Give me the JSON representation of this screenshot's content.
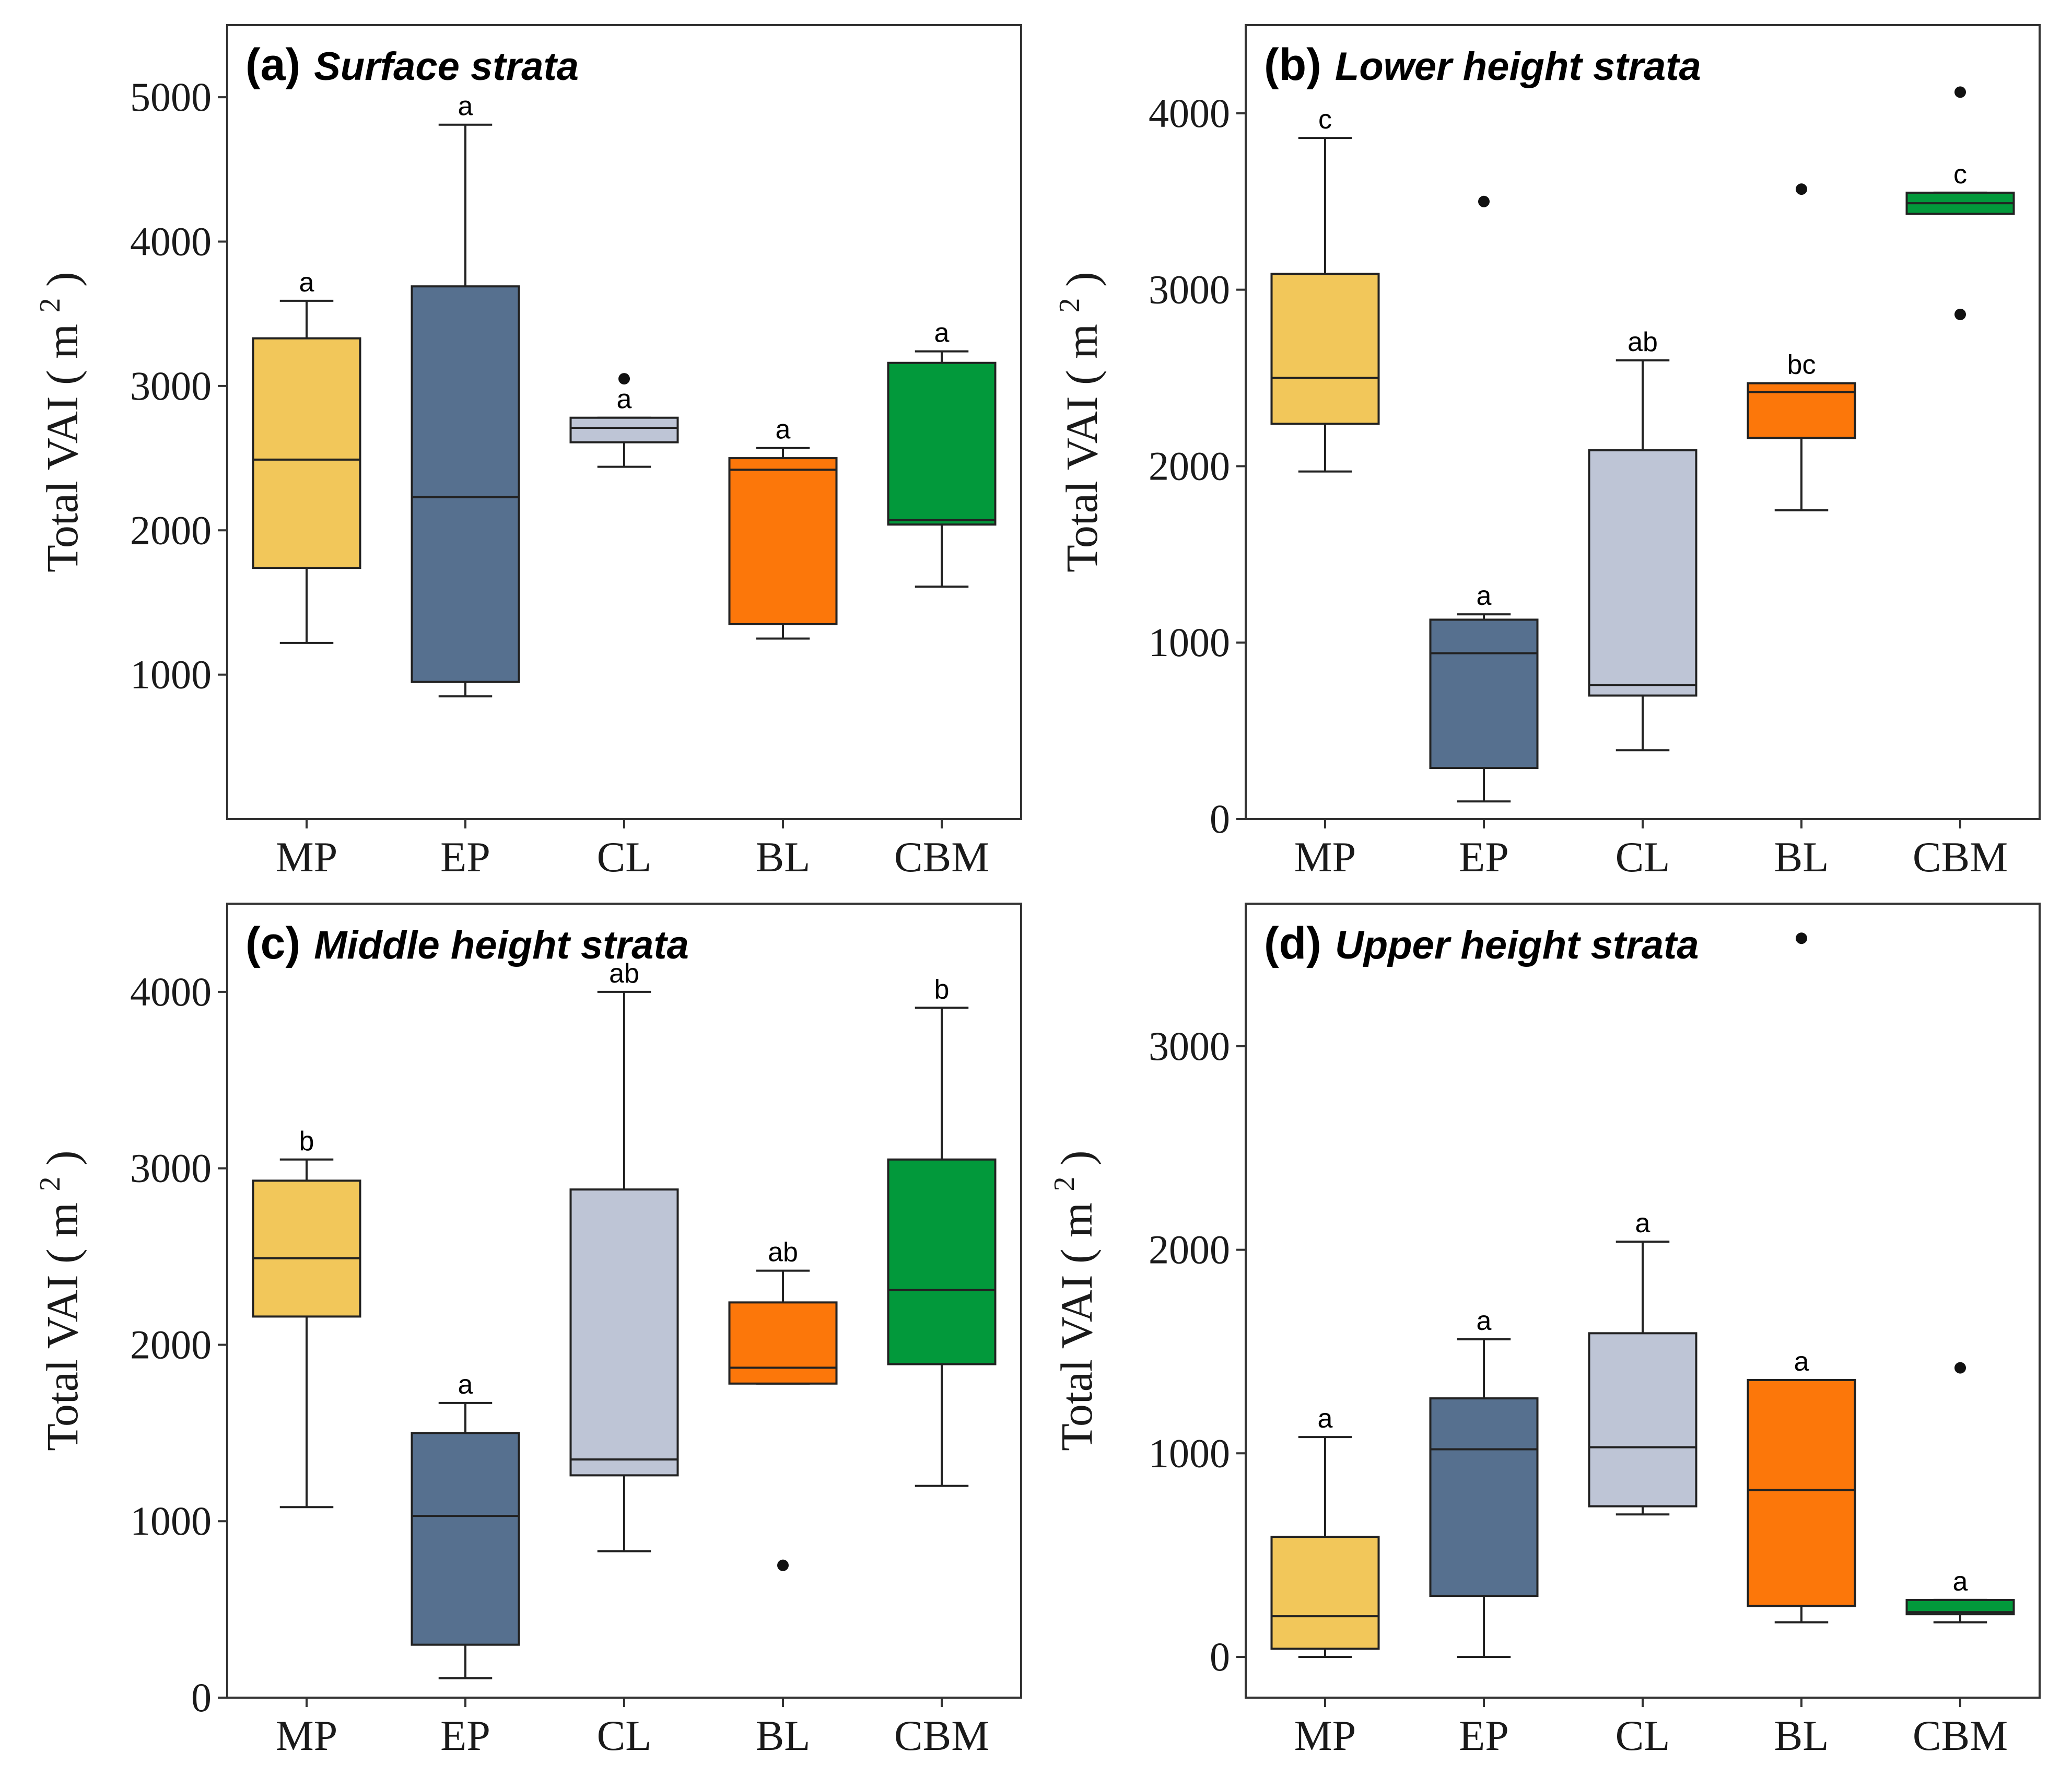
{
  "chart_data": [
    {
      "type": "box",
      "panel": "(a)",
      "title": "Surface strata",
      "ylabel": "Total VAI ( m",
      "ylabel_sup": "2",
      "ylabel_close": ")",
      "ylim": [
        0,
        5500
      ],
      "yticks": [
        1000,
        2000,
        3000,
        4000,
        5000
      ],
      "ytick_labels": [
        "1000",
        "2000",
        "3000",
        "4000",
        "5000"
      ],
      "categories": [
        "MP",
        "EP",
        "CL",
        "BL",
        "CBM"
      ],
      "boxes": [
        {
          "min": 1220,
          "q1": 1740,
          "median": 2490,
          "q3": 3330,
          "max": 3590,
          "outliers": [],
          "sig": "a"
        },
        {
          "min": 850,
          "q1": 950,
          "median": 2230,
          "q3": 3690,
          "max": 4810,
          "outliers": [],
          "sig": "a"
        },
        {
          "min": 2440,
          "q1": 2610,
          "median": 2710,
          "q3": 2780,
          "max": 2780,
          "outliers": [
            3050
          ],
          "sig": "a"
        },
        {
          "min": 1250,
          "q1": 1350,
          "median": 2420,
          "q3": 2500,
          "max": 2570,
          "outliers": [],
          "sig": "a"
        },
        {
          "min": 1610,
          "q1": 2040,
          "median": 2070,
          "q3": 3160,
          "max": 3240,
          "outliers": [],
          "sig": "a"
        }
      ]
    },
    {
      "type": "box",
      "panel": "(b)",
      "title": "Lower height strata",
      "ylabel": "Total VAI ( m",
      "ylabel_sup": "2",
      "ylabel_close": ")",
      "ylim": [
        0,
        4500
      ],
      "yticks": [
        0,
        1000,
        2000,
        3000,
        4000
      ],
      "ytick_labels": [
        "0",
        "1000",
        "2000",
        "3000",
        "4000"
      ],
      "categories": [
        "MP",
        "EP",
        "CL",
        "BL",
        "CBM"
      ],
      "boxes": [
        {
          "min": 1970,
          "q1": 2240,
          "median": 2500,
          "q3": 3090,
          "max": 3860,
          "outliers": [],
          "sig": "c"
        },
        {
          "min": 100,
          "q1": 290,
          "median": 940,
          "q3": 1130,
          "max": 1160,
          "outliers": [
            3500
          ],
          "sig": "a"
        },
        {
          "min": 390,
          "q1": 700,
          "median": 760,
          "q3": 2090,
          "max": 2600,
          "outliers": [],
          "sig": "ab"
        },
        {
          "min": 1750,
          "q1": 2160,
          "median": 2420,
          "q3": 2470,
          "max": 2470,
          "outliers": [
            3570
          ],
          "sig": "bc"
        },
        {
          "min": 3430,
          "q1": 3430,
          "median": 3490,
          "q3": 3550,
          "max": 3550,
          "outliers": [
            4120,
            2860
          ],
          "sig": "c"
        }
      ]
    },
    {
      "type": "box",
      "panel": "(c)",
      "title": "Middle height strata",
      "ylabel": "Total VAI ( m",
      "ylabel_sup": "2",
      "ylabel_close": ")",
      "ylim": [
        0,
        4500
      ],
      "yticks": [
        0,
        1000,
        2000,
        3000,
        4000
      ],
      "ytick_labels": [
        "0",
        "1000",
        "2000",
        "3000",
        "4000"
      ],
      "categories": [
        "MP",
        "EP",
        "CL",
        "BL",
        "CBM"
      ],
      "boxes": [
        {
          "min": 1080,
          "q1": 2160,
          "median": 2490,
          "q3": 2930,
          "max": 3050,
          "outliers": [],
          "sig": "b"
        },
        {
          "min": 110,
          "q1": 300,
          "median": 1030,
          "q3": 1500,
          "max": 1670,
          "outliers": [],
          "sig": "a"
        },
        {
          "min": 830,
          "q1": 1260,
          "median": 1350,
          "q3": 2880,
          "max": 4000,
          "outliers": [],
          "sig": "ab"
        },
        {
          "min": 1780,
          "q1": 1780,
          "median": 1870,
          "q3": 2240,
          "max": 2420,
          "outliers": [
            750
          ],
          "sig": "ab"
        },
        {
          "min": 1200,
          "q1": 1890,
          "median": 2310,
          "q3": 3050,
          "max": 3910,
          "outliers": [],
          "sig": "b"
        }
      ]
    },
    {
      "type": "box",
      "panel": "(d)",
      "title": "Upper height strata",
      "ylabel": "Total VAI ( m",
      "ylabel_sup": "2",
      "ylabel_close": ")",
      "ylim": [
        -200,
        3700
      ],
      "yticks": [
        0,
        1000,
        2000,
        3000
      ],
      "ytick_labels": [
        "0",
        "1000",
        "2000",
        "3000"
      ],
      "categories": [
        "MP",
        "EP",
        "CL",
        "BL",
        "CBM"
      ],
      "boxes": [
        {
          "min": 0,
          "q1": 40,
          "median": 200,
          "q3": 590,
          "max": 1080,
          "outliers": [],
          "sig": "a"
        },
        {
          "min": 0,
          "q1": 300,
          "median": 1020,
          "q3": 1270,
          "max": 1560,
          "outliers": [],
          "sig": "a"
        },
        {
          "min": 700,
          "q1": 740,
          "median": 1030,
          "q3": 1590,
          "max": 2040,
          "outliers": [],
          "sig": "a"
        },
        {
          "min": 170,
          "q1": 250,
          "median": 820,
          "q3": 1360,
          "max": 1360,
          "outliers": [
            3530
          ],
          "sig": "a"
        },
        {
          "min": 170,
          "q1": 210,
          "median": 220,
          "q3": 280,
          "max": 280,
          "outliers": [
            1420
          ],
          "sig": "a"
        }
      ]
    }
  ],
  "colors": [
    "#f2c75a",
    "#56708f",
    "#bec5d6",
    "#fc770a",
    "#02993b"
  ]
}
